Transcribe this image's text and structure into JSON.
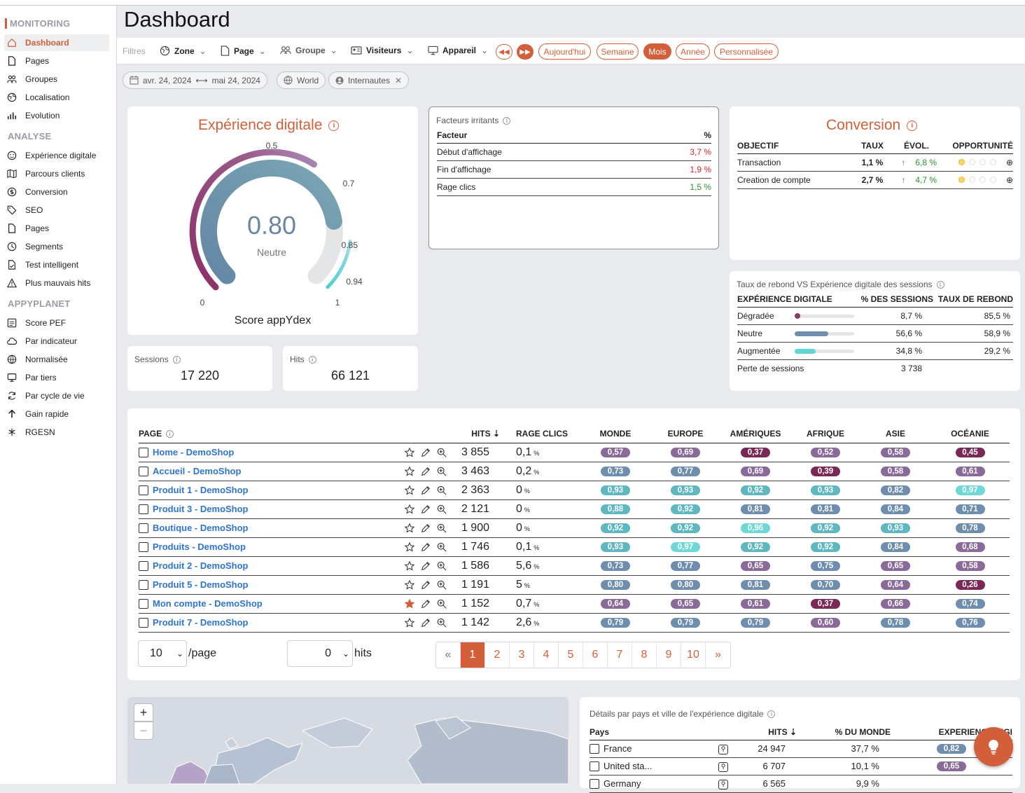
{
  "colors": {
    "accent": "#d35f3a",
    "link": "#2f74d0",
    "degraded": "#8a3a6a",
    "neutral": "#6f8fad",
    "augmented": "#5fd6d3"
  },
  "sidebar": {
    "monitoring_title": "MONITORING",
    "monitoring_items": [
      {
        "label": "Dashboard",
        "icon": "home-icon"
      },
      {
        "label": "Pages",
        "icon": "page-icon"
      },
      {
        "label": "Groupes",
        "icon": "groups-icon"
      },
      {
        "label": "Localisation",
        "icon": "globe-icon"
      },
      {
        "label": "Evolution",
        "icon": "bar-chart-icon"
      }
    ],
    "analyse_title": "ANALYSE",
    "analyse_items": [
      {
        "label": "Expérience digitale",
        "icon": "smiley-icon"
      },
      {
        "label": "Parcours clients",
        "icon": "map-icon"
      },
      {
        "label": "Conversion",
        "icon": "dollar-icon"
      },
      {
        "label": "SEO",
        "icon": "tag-icon"
      },
      {
        "label": "Pages",
        "icon": "page-icon"
      },
      {
        "label": "Segments",
        "icon": "clock-icon"
      },
      {
        "label": "Test intelligent",
        "icon": "test-doc-icon"
      },
      {
        "label": "Plus mauvais hits",
        "icon": "warning-icon"
      }
    ],
    "appyplanet_title": "APPYPLANET",
    "appyplanet_items": [
      {
        "label": "Score PEF",
        "icon": "score-icon"
      },
      {
        "label": "Par indicateur",
        "icon": "cloud-icon"
      },
      {
        "label": "Normalisée",
        "icon": "world-icon"
      },
      {
        "label": "Par tiers",
        "icon": "monitor-icon"
      },
      {
        "label": "Par cycle de vie",
        "icon": "cycle-icon"
      },
      {
        "label": "Gain rapide",
        "icon": "arrow-up-icon"
      },
      {
        "label": "RGESN",
        "icon": "rgesn-icon"
      }
    ]
  },
  "header": {
    "title": "Dashboard"
  },
  "filters": {
    "label": "Filtres",
    "zone": "Zone",
    "page": "Page",
    "groupe": "Groupe",
    "visiteurs": "Visiteurs",
    "appareil": "Appareil",
    "prev_icon": "rewind-icon",
    "next_icon": "fast-forward-icon",
    "periods": [
      "Aujourd'hui",
      "Semaine",
      "Mois",
      "Année",
      "Personnalisée"
    ],
    "active_period": "Mois"
  },
  "chips": {
    "date_from": "avr. 24, 2024",
    "date_to": "mai 24, 2024",
    "zone": "World",
    "visitors": "Internautes"
  },
  "experience": {
    "title": "Expérience digitale",
    "score": "0.80",
    "label": "Neutre",
    "caption": "Score appYdex",
    "ticks": [
      "0",
      "0.5",
      "0.7",
      "0.85",
      "0.94",
      "1"
    ]
  },
  "irritants": {
    "title": "Facteurs irritants",
    "col_factor": "Facteur",
    "col_pct": "%",
    "rows": [
      {
        "name": "Début d'affichage",
        "value": "3,7 %",
        "tone": "red"
      },
      {
        "name": "Fin d'affichage",
        "value": "1,9 %",
        "tone": "red"
      },
      {
        "name": "Rage clics",
        "value": "1,5 %",
        "tone": "green"
      }
    ]
  },
  "conversion": {
    "title": "Conversion",
    "headers": [
      "OBJECTIF",
      "TAUX",
      "ÉVOL.",
      "OPPORTUNITÉ"
    ],
    "rows": [
      {
        "name": "Transaction",
        "rate": "1,1 %",
        "evol": "6,8 %"
      },
      {
        "name": "Creation de compte",
        "rate": "2,7 %",
        "evol": "4,7 %"
      }
    ]
  },
  "stats": {
    "sessions_label": "Sessions",
    "sessions": "17 220",
    "hits_label": "Hits",
    "hits": "66 121"
  },
  "bounce": {
    "title": "Taux de rebond VS Expérience digitale des sessions",
    "headers": [
      "EXPÉRIENCE DIGITALE",
      "% DES SESSIONS",
      "TAUX DE REBOND"
    ],
    "rows": [
      {
        "name": "Dégradée",
        "sessions": "8,7 %",
        "bounce": "85,5 %",
        "share": 0.087
      },
      {
        "name": "Neutre",
        "sessions": "56,6 %",
        "bounce": "58,9 %",
        "share": 0.566
      },
      {
        "name": "Augmentée",
        "sessions": "34,8 %",
        "bounce": "29,2 %",
        "share": 0.348
      }
    ],
    "loss_label": "Perte de sessions",
    "loss_value": "3 738"
  },
  "pages_table": {
    "headers": {
      "page": "PAGE",
      "hits": "HITS",
      "rage": "RAGE CLICS",
      "monde": "MONDE",
      "europe": "EUROPE",
      "ameriques": "AMÉRIQUES",
      "afrique": "AFRIQUE",
      "asie": "ASIE",
      "oceanie": "OCÉANIE"
    },
    "rows": [
      {
        "name": "Home - DemoShop",
        "hits": "3 855",
        "rage": "0,1",
        "fav": false,
        "scores": [
          "0,57",
          "0,69",
          "0,37",
          "0,52",
          "0,58",
          "0,45"
        ]
      },
      {
        "name": "Accueil - DemoShop",
        "hits": "3 463",
        "rage": "0,2",
        "fav": false,
        "scores": [
          "0,73",
          "0,77",
          "0,69",
          "0,39",
          "0,58",
          "0,61"
        ]
      },
      {
        "name": "Produit 1 - DemoShop",
        "hits": "2 363",
        "rage": "0",
        "fav": false,
        "scores": [
          "0,93",
          "0,93",
          "0,92",
          "0,93",
          "0,82",
          "0,97"
        ]
      },
      {
        "name": "Produit 3 - DemoShop",
        "hits": "2 121",
        "rage": "0",
        "fav": false,
        "scores": [
          "0,88",
          "0,92",
          "0,81",
          "0,81",
          "0,84",
          "0,71"
        ]
      },
      {
        "name": "Boutique - DemoShop",
        "hits": "1 900",
        "rage": "0",
        "fav": false,
        "scores": [
          "0,92",
          "0,92",
          "0,96",
          "0,92",
          "0,93",
          "0,78"
        ]
      },
      {
        "name": "Produits - DemoShop",
        "hits": "1 746",
        "rage": "0,1",
        "fav": false,
        "scores": [
          "0,93",
          "0,97",
          "0,92",
          "0,92",
          "0,84",
          "0,68"
        ]
      },
      {
        "name": "Produit 2 - DemoShop",
        "hits": "1 586",
        "rage": "5,6",
        "fav": false,
        "scores": [
          "0,73",
          "0,77",
          "0,65",
          "0,75",
          "0,65",
          "0,58"
        ]
      },
      {
        "name": "Produit 5 - DemoShop",
        "hits": "1 191",
        "rage": "5",
        "fav": false,
        "scores": [
          "0,80",
          "0,80",
          "0,81",
          "0,70",
          "0,64",
          "0,26"
        ]
      },
      {
        "name": "Mon compte - DemoShop",
        "hits": "1 152",
        "rage": "0,7",
        "fav": true,
        "scores": [
          "0,64",
          "0,65",
          "0,61",
          "0,37",
          "0,66",
          "0,74"
        ]
      },
      {
        "name": "Produit 7 - DemoShop",
        "hits": "1 142",
        "rage": "2,6",
        "fav": false,
        "scores": [
          "0,79",
          "0,79",
          "0,79",
          "0,60",
          "0,78",
          "0,76"
        ]
      }
    ],
    "pct_unit": "%",
    "per_page": "10",
    "per_page_label": "/page",
    "min_hits": "0",
    "min_hits_label": "hits",
    "pages": [
      "«",
      "1",
      "2",
      "3",
      "4",
      "5",
      "6",
      "7",
      "8",
      "9",
      "10",
      "»"
    ],
    "current_page": "1"
  },
  "map": {
    "zoom_in": "+",
    "zoom_out": "−"
  },
  "country": {
    "title": "Détails par pays et ville de l'expérience digitale",
    "headers": [
      "Pays",
      "HITS",
      "% DU MONDE",
      "EXPERIENCE DIGI"
    ],
    "rows": [
      {
        "name": "France",
        "hits": "24 947",
        "pct": "37,7 %",
        "score": "0,82"
      },
      {
        "name": "United sta...",
        "hits": "6 707",
        "pct": "10,1 %",
        "score": "0,65"
      },
      {
        "name": "Germany",
        "hits": "6 565",
        "pct": "9,9 %",
        "score": ""
      }
    ]
  }
}
